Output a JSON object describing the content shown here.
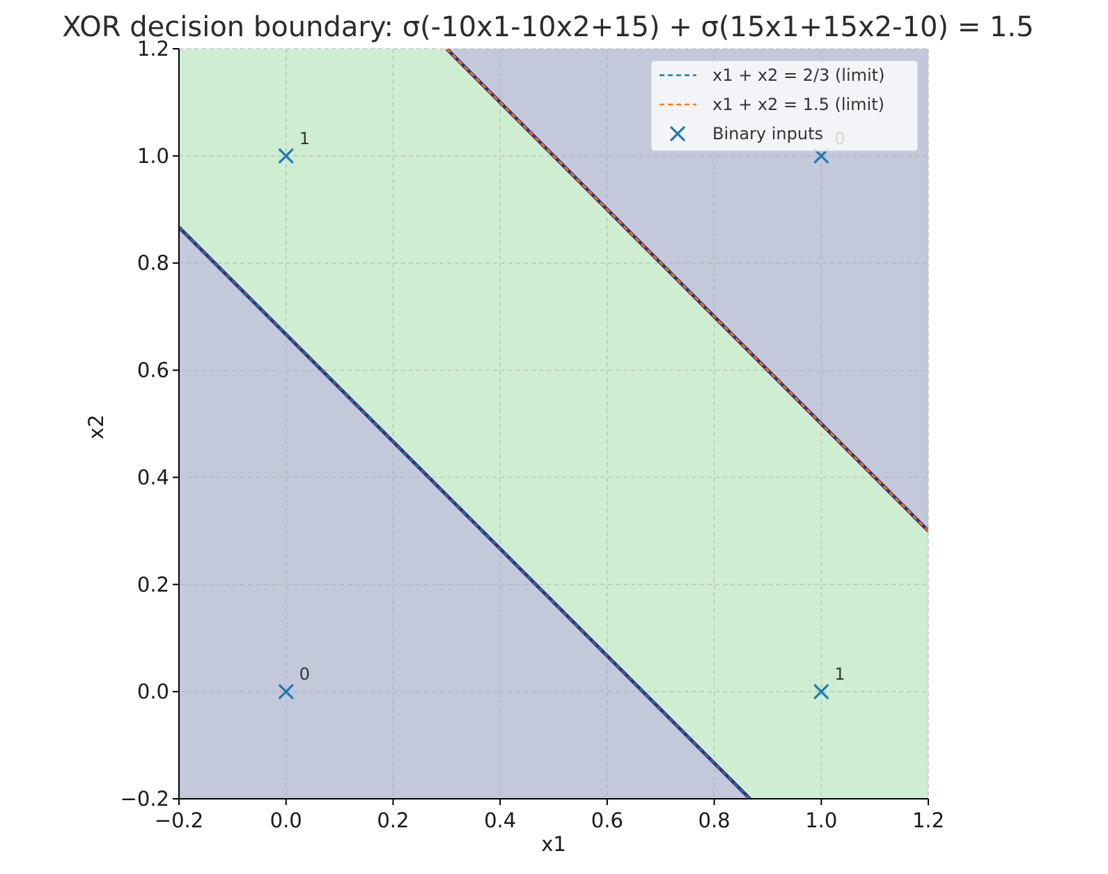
{
  "chart_data": {
    "type": "line",
    "title": "XOR decision boundary: σ(-10x1-10x2+15) + σ(15x1+15x2-10) = 1.5",
    "xlabel": "x1",
    "ylabel": "x2",
    "xlim": [
      -0.2,
      1.2
    ],
    "ylim": [
      -0.2,
      1.2
    ],
    "grid": true,
    "legend_position": "top-right",
    "x_ticks": [
      -0.2,
      0.0,
      0.2,
      0.4,
      0.6,
      0.8,
      1.0,
      1.2
    ],
    "y_ticks": [
      -0.2,
      0.0,
      0.2,
      0.4,
      0.6,
      0.8,
      1.0,
      1.2
    ],
    "x_tick_labels": [
      "−0.2",
      "0.0",
      "0.2",
      "0.4",
      "0.6",
      "0.8",
      "1.0",
      "1.2"
    ],
    "y_tick_labels": [
      "−0.2",
      "0.0",
      "0.2",
      "0.4",
      "0.6",
      "0.8",
      "1.0",
      "1.2"
    ],
    "regions": [
      {
        "description": "x1 + x2 < 2/3",
        "color": "#c3c8db"
      },
      {
        "description": "2/3 < x1 + x2 < 1.5",
        "color": "#cfedd0"
      },
      {
        "description": "x1 + x2 > 1.5",
        "color": "#c3c8db"
      }
    ],
    "series": [
      {
        "name": "x1 + x2 = 2/3 (limit)",
        "style": "dashed",
        "color": "#1f77b4",
        "x": [
          -0.2,
          0.8667
        ],
        "y": [
          0.8667,
          -0.2
        ]
      },
      {
        "name": "x1 + x2 = 1.5 (limit)",
        "style": "dashed",
        "color": "#ff7f0e",
        "x": [
          0.3,
          1.2
        ],
        "y": [
          1.2,
          0.3
        ]
      }
    ],
    "points": {
      "name": "Binary inputs",
      "marker": "x",
      "color": "#1f77b4",
      "data": [
        {
          "x": 0,
          "y": 0,
          "label": "0"
        },
        {
          "x": 0,
          "y": 1,
          "label": "1"
        },
        {
          "x": 1,
          "y": 0,
          "label": "1"
        },
        {
          "x": 1,
          "y": 1,
          "label": "0"
        }
      ]
    },
    "boundary_color": "#3b2f6e"
  }
}
